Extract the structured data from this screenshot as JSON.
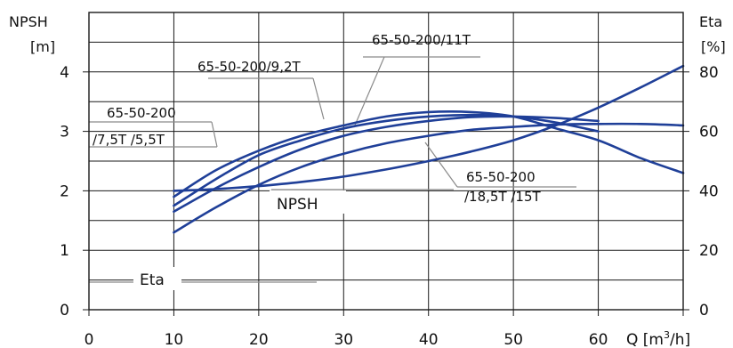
{
  "chart_data": {
    "type": "line",
    "x_title": "Q [m",
    "x_title_sup": "3",
    "x_title_end": "/h]",
    "y_left_title_line1": "NPSH",
    "y_left_title_line2": "[m]",
    "y_right_title_line1": "Eta",
    "y_right_title_line2": "[%]",
    "xlim": [
      0,
      70
    ],
    "ylim_left": [
      0,
      5
    ],
    "ylim_right": [
      0,
      100
    ],
    "x_ticks": [
      "0",
      "10",
      "20",
      "30",
      "40",
      "50",
      "60",
      "Q"
    ],
    "y_left_ticks": [
      "0",
      "1",
      "2",
      "3",
      "4"
    ],
    "y_right_ticks": [
      "0",
      "20",
      "40",
      "60",
      "80"
    ],
    "grid": true,
    "line_color": "#1f3f98",
    "series": [
      {
        "name": "65-50-200/11T",
        "axis": "right",
        "points": [
          [
            10,
            35
          ],
          [
            15,
            44
          ],
          [
            20,
            52
          ],
          [
            25,
            57
          ],
          [
            30,
            61
          ],
          [
            35,
            63.5
          ],
          [
            40,
            65
          ],
          [
            45,
            65.5
          ],
          [
            50,
            65
          ],
          [
            55,
            63
          ],
          [
            60,
            60
          ]
        ]
      },
      {
        "name": "65-50-200/9,2T",
        "axis": "right",
        "points": [
          [
            10,
            33
          ],
          [
            15,
            41
          ],
          [
            20,
            48
          ],
          [
            25,
            54
          ],
          [
            30,
            58.5
          ],
          [
            35,
            61.5
          ],
          [
            40,
            63.5
          ],
          [
            45,
            64.8
          ],
          [
            50,
            65
          ],
          [
            55,
            64.5
          ],
          [
            60,
            63.5
          ]
        ]
      },
      {
        "name": "65-50-200 /7,5T /5,5T",
        "axis": "right",
        "points": [
          [
            10,
            38
          ],
          [
            15,
            47
          ],
          [
            20,
            53.5
          ],
          [
            25,
            58.5
          ],
          [
            30,
            62
          ],
          [
            35,
            65
          ],
          [
            40,
            66.5
          ],
          [
            45,
            66.5
          ],
          [
            50,
            65
          ],
          [
            55,
            61
          ],
          [
            60,
            57
          ],
          [
            65,
            51
          ],
          [
            70,
            46
          ]
        ]
      },
      {
        "name": "65-50-200 /18,5T /15T",
        "axis": "right",
        "points": [
          [
            10,
            26
          ],
          [
            15,
            34.5
          ],
          [
            20,
            42
          ],
          [
            25,
            48
          ],
          [
            30,
            52.5
          ],
          [
            35,
            56
          ],
          [
            40,
            58.5
          ],
          [
            45,
            60.5
          ],
          [
            50,
            61.5
          ],
          [
            55,
            62.3
          ],
          [
            60,
            62.5
          ],
          [
            65,
            62.5
          ],
          [
            70,
            62
          ]
        ]
      },
      {
        "name": "NPSH",
        "axis": "left",
        "points": [
          [
            10,
            2.0
          ],
          [
            15,
            2.03
          ],
          [
            20,
            2.08
          ],
          [
            25,
            2.15
          ],
          [
            30,
            2.24
          ],
          [
            35,
            2.36
          ],
          [
            40,
            2.5
          ],
          [
            45,
            2.66
          ],
          [
            50,
            2.85
          ],
          [
            55,
            3.1
          ],
          [
            60,
            3.4
          ],
          [
            65,
            3.74
          ],
          [
            70,
            4.1
          ]
        ]
      }
    ],
    "callouts": {
      "c11": "65-50-200/11T",
      "c92": "65-50-200/9,2T",
      "c75_line1": "65-50-200",
      "c75_line2": "/7,5T /5,5T",
      "c185_line1": "65-50-200",
      "c185_line2": "/18,5T /15T",
      "npsh": "NPSH",
      "eta": "Eta"
    }
  }
}
